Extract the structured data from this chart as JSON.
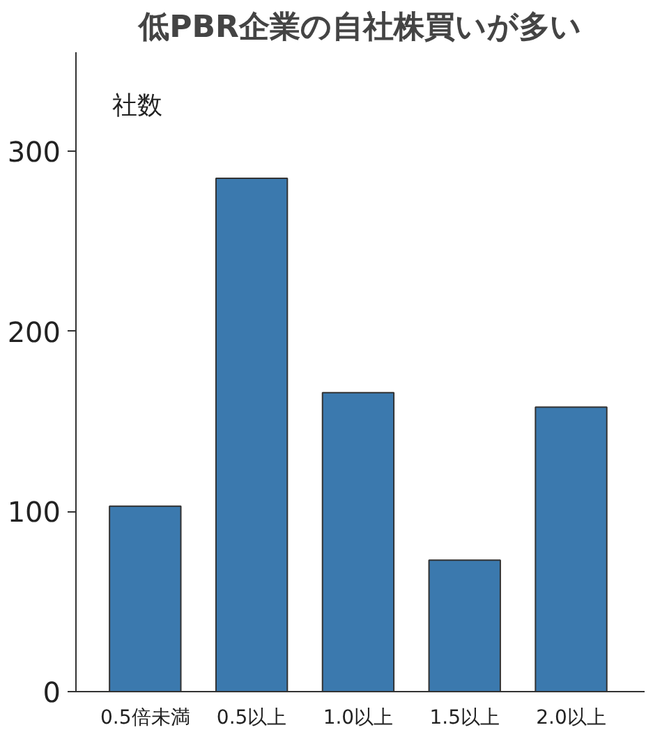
{
  "chart_data": {
    "type": "bar",
    "title": "低PBR企業の自社株買いが多い",
    "ylabel": "社数",
    "categories": [
      "0.5倍未満",
      "0.5以上",
      "1.0以上",
      "1.5以上",
      "2.0以上"
    ],
    "values": [
      103,
      285,
      166,
      73,
      158
    ],
    "color": "#3b79ae",
    "ylim": [
      0,
      355
    ],
    "yticks": [
      0,
      100,
      200,
      300
    ],
    "grid": false
  }
}
